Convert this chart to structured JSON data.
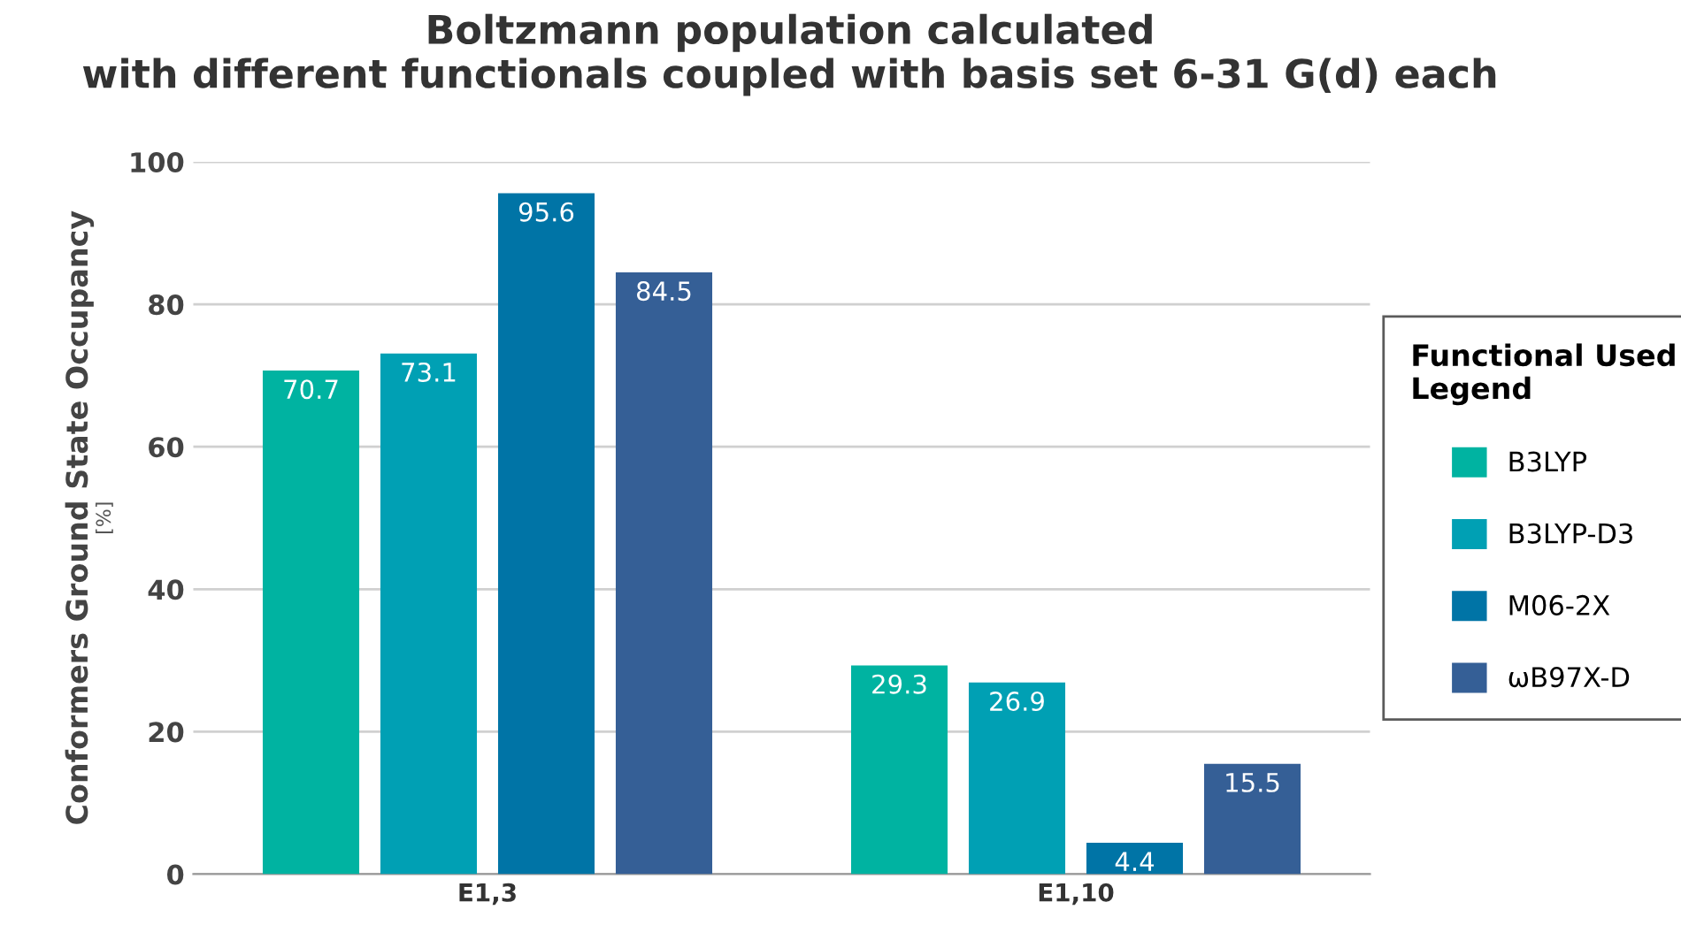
{
  "chart_data": {
    "type": "bar",
    "title": "Boltzmann population calculated\nwith different functionals coupled with basis set 6-31 G(d) each",
    "ylabel": "Conformers Ground State Occupancy\n[%]",
    "legend_title": "Functional Used\nLegend",
    "categories": [
      "E1,3",
      "E1,10"
    ],
    "series": [
      {
        "name": "B3LYP",
        "color": "#00b3a1",
        "values": [
          70.7,
          29.3
        ]
      },
      {
        "name": "B3LYP-D3",
        "color": "#00a0b4",
        "values": [
          73.1,
          26.9
        ]
      },
      {
        "name": "M06-2X",
        "color": "#0074a6",
        "values": [
          95.6,
          4.4
        ]
      },
      {
        "name": "ωB97X-D",
        "color": "#355f96",
        "values": [
          84.5,
          15.5
        ]
      }
    ],
    "ylim": [
      0,
      100
    ],
    "yticks": [
      0,
      20,
      40,
      60,
      80,
      100
    ],
    "grid": "y",
    "legend": "right",
    "data_labels": true
  }
}
